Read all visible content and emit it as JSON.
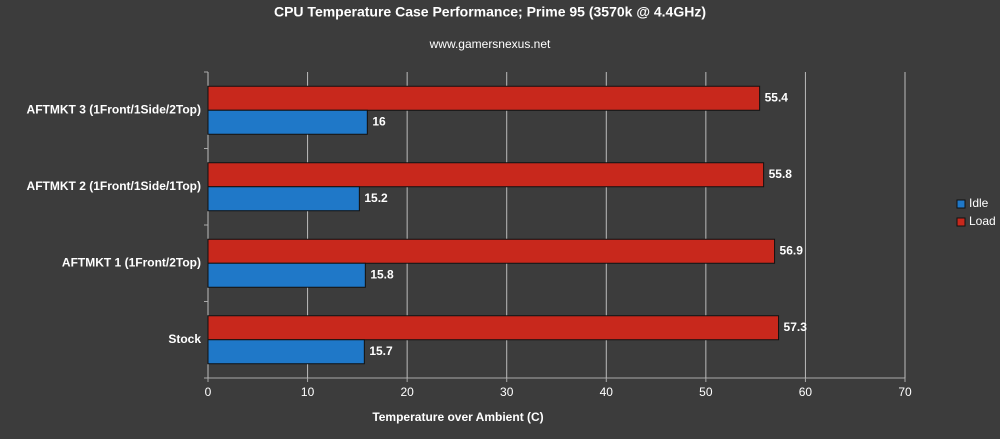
{
  "chart_data": {
    "type": "hbar",
    "title": "CPU Temperature Case Performance; Prime 95 (3570k @ 4.4GHz)",
    "subtitle": "www.gamersnexus.net",
    "x_label": "Temperature over Ambient (C)",
    "categories": [
      "AFTMKT 3 (1Front/1Side/2Top)",
      "AFTMKT 2 (1Front/1Side/1Top)",
      "AFTMKT 1 (1Front/2Top)",
      "Stock"
    ],
    "series": [
      {
        "name": "Idle",
        "color": "#1f78c8",
        "values": [
          16,
          15.2,
          15.8,
          15.7
        ]
      },
      {
        "name": "Load",
        "color": "#c8281c",
        "values": [
          55.4,
          55.8,
          56.9,
          57.3
        ]
      }
    ],
    "xlim": [
      0,
      70
    ],
    "xticks": [
      0,
      10,
      20,
      30,
      40,
      50,
      60,
      70
    ],
    "grid": true,
    "legend": "right"
  }
}
